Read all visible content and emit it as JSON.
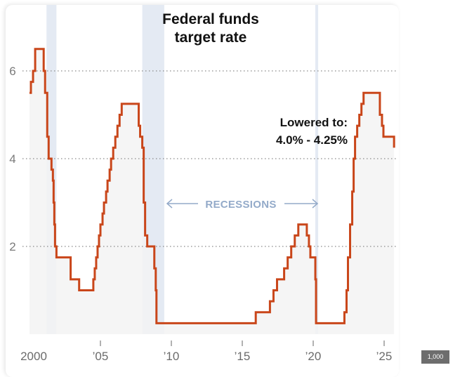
{
  "chart_data": {
    "type": "line",
    "step": true,
    "title": "Federal funds target rate",
    "title_lines": [
      "Federal funds",
      "target rate"
    ],
    "xlabel": "",
    "ylabel": "",
    "xlim": [
      2000,
      2025.7
    ],
    "ylim": [
      0,
      6.9
    ],
    "grid": true,
    "x_ticks": [
      {
        "value": 2000,
        "label": "2000"
      },
      {
        "value": 2005,
        "label": "’05"
      },
      {
        "value": 2010,
        "label": "’10"
      },
      {
        "value": 2015,
        "label": "’15"
      },
      {
        "value": 2020,
        "label": "’20"
      },
      {
        "value": 2025,
        "label": "’25"
      }
    ],
    "y_ticks": [
      {
        "value": 2,
        "label": "2"
      },
      {
        "value": 4,
        "label": "4"
      },
      {
        "value": 6,
        "label": "6"
      }
    ],
    "series": [
      {
        "name": "Federal funds target rate (upper bound)",
        "color": "#c9461a",
        "points": [
          [
            2000.0,
            5.5
          ],
          [
            2000.1,
            5.75
          ],
          [
            2000.25,
            6.0
          ],
          [
            2000.4,
            6.5
          ],
          [
            2001.0,
            6.0
          ],
          [
            2001.1,
            5.5
          ],
          [
            2001.25,
            4.5
          ],
          [
            2001.35,
            4.0
          ],
          [
            2001.55,
            3.75
          ],
          [
            2001.65,
            3.5
          ],
          [
            2001.7,
            3.0
          ],
          [
            2001.75,
            2.5
          ],
          [
            2001.8,
            2.0
          ],
          [
            2001.9,
            1.75
          ],
          [
            2002.9,
            1.25
          ],
          [
            2003.5,
            1.0
          ],
          [
            2004.5,
            1.25
          ],
          [
            2004.6,
            1.5
          ],
          [
            2004.7,
            1.75
          ],
          [
            2004.8,
            2.0
          ],
          [
            2004.9,
            2.25
          ],
          [
            2005.0,
            2.5
          ],
          [
            2005.15,
            2.75
          ],
          [
            2005.25,
            3.0
          ],
          [
            2005.4,
            3.25
          ],
          [
            2005.5,
            3.5
          ],
          [
            2005.65,
            3.75
          ],
          [
            2005.75,
            4.0
          ],
          [
            2005.9,
            4.25
          ],
          [
            2006.05,
            4.5
          ],
          [
            2006.2,
            4.75
          ],
          [
            2006.35,
            5.0
          ],
          [
            2006.5,
            5.25
          ],
          [
            2007.7,
            4.75
          ],
          [
            2007.8,
            4.5
          ],
          [
            2007.95,
            4.25
          ],
          [
            2008.05,
            3.0
          ],
          [
            2008.15,
            2.25
          ],
          [
            2008.3,
            2.0
          ],
          [
            2008.8,
            1.5
          ],
          [
            2008.9,
            1.0
          ],
          [
            2008.95,
            0.25
          ],
          [
            2015.95,
            0.5
          ],
          [
            2016.95,
            0.75
          ],
          [
            2017.2,
            1.0
          ],
          [
            2017.45,
            1.25
          ],
          [
            2017.95,
            1.5
          ],
          [
            2018.2,
            1.75
          ],
          [
            2018.45,
            2.0
          ],
          [
            2018.7,
            2.25
          ],
          [
            2018.95,
            2.5
          ],
          [
            2019.55,
            2.25
          ],
          [
            2019.7,
            2.0
          ],
          [
            2019.8,
            1.75
          ],
          [
            2020.15,
            1.25
          ],
          [
            2020.2,
            0.25
          ],
          [
            2022.2,
            0.5
          ],
          [
            2022.35,
            1.0
          ],
          [
            2022.45,
            1.75
          ],
          [
            2022.6,
            2.5
          ],
          [
            2022.75,
            3.25
          ],
          [
            2022.85,
            4.0
          ],
          [
            2022.95,
            4.5
          ],
          [
            2023.1,
            4.75
          ],
          [
            2023.25,
            5.0
          ],
          [
            2023.4,
            5.25
          ],
          [
            2023.55,
            5.5
          ],
          [
            2024.7,
            5.0
          ],
          [
            2024.85,
            4.75
          ],
          [
            2024.95,
            4.5
          ],
          [
            2025.7,
            4.25
          ]
        ]
      }
    ],
    "recessions": [
      {
        "start": 2001.2,
        "end": 2001.9
      },
      {
        "start": 2007.95,
        "end": 2009.5
      },
      {
        "start": 2020.15,
        "end": 2020.35
      }
    ],
    "annotations": [
      {
        "text_lines": [
          "Lowered to:",
          "4.0% - 4.25%"
        ],
        "x": 2025.7,
        "y": 4.25
      },
      {
        "text": "RECESSIONS",
        "arrows": "both"
      }
    ]
  },
  "badge": {
    "label": "1,000"
  },
  "colors": {
    "line": "#c9461a",
    "area": "#f3f3f3",
    "recession": "#e4eaf3",
    "grid": "#8a8a8a",
    "recession_label": "#93aac9"
  }
}
